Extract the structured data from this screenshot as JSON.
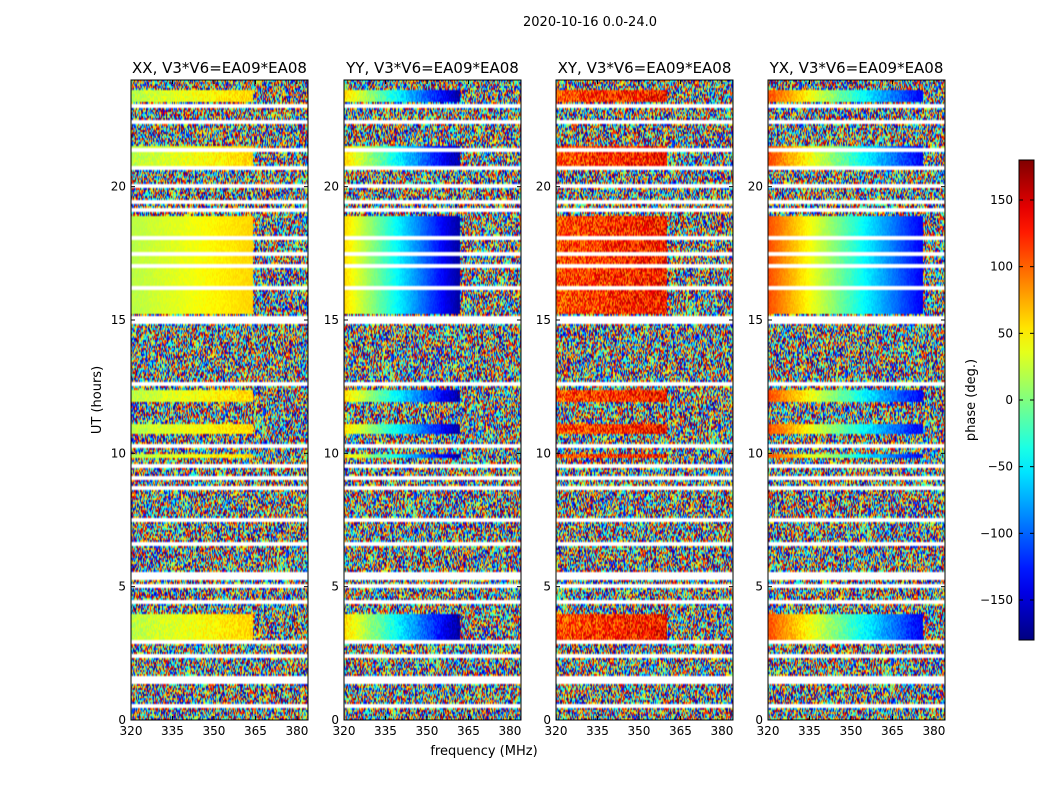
{
  "chart_data": {
    "type": "heatmap",
    "suptitle": "2020-10-16 0.0-24.0",
    "xlabel": "frequency (MHz)",
    "ylabel": "UT (hours)",
    "xlim": [
      320,
      384
    ],
    "ylim": [
      0,
      24
    ],
    "xticks": [
      "320",
      "335",
      "350",
      "365",
      "380"
    ],
    "xtick_values": [
      320,
      335,
      350,
      365,
      380
    ],
    "yticks": [
      "0",
      "5",
      "10",
      "15",
      "20"
    ],
    "ytick_values": [
      0,
      5,
      10,
      15,
      20
    ],
    "panels": [
      {
        "title": "XX, V3*V6=EA09*EA08",
        "pattern": "flat",
        "phase_start": 20,
        "phase_end": 60,
        "wrap_freq": null,
        "rfi_freq": 364
      },
      {
        "title": "YY, V3*V6=EA09*EA08",
        "pattern": "ramp",
        "phase_start": 60,
        "phase_end": -170,
        "wrap_freq": 348,
        "rfi_freq": 362
      },
      {
        "title": "XY, V3*V6=EA09*EA08",
        "pattern": "noisy",
        "phase_start": 110,
        "phase_end": 130,
        "wrap_freq": null,
        "rfi_freq": 360
      },
      {
        "title": "YX, V3*V6=EA09*EA08",
        "pattern": "ramp",
        "phase_start": 110,
        "phase_end": -140,
        "wrap_freq": 331,
        "rfi_freq": 376
      }
    ],
    "good_time_ranges": [
      [
        15.2,
        18.9
      ]
    ],
    "partial_time_ranges": [
      [
        3.0,
        4.0
      ],
      [
        9.8,
        10.0
      ],
      [
        10.7,
        11.1
      ],
      [
        11.9,
        12.4
      ],
      [
        20.6,
        21.5
      ],
      [
        23.2,
        23.6
      ]
    ],
    "flagged_time_rows": [
      0.5,
      1.4,
      1.6,
      2.4,
      2.9,
      4.4,
      5.05,
      5.3,
      5.5,
      6.6,
      7.5,
      8.7,
      9.1,
      9.5,
      10.3,
      12.6,
      14.9,
      15.1,
      16.2,
      17.0,
      17.5,
      18.1,
      19.1,
      19.4,
      20.0,
      20.7,
      21.4,
      22.4,
      23.0
    ],
    "colorbar": {
      "label": "phase (deg.)",
      "range": [
        -180,
        180
      ],
      "ticks": [
        "150",
        "100",
        "50",
        "0",
        "−50",
        "−100",
        "−150"
      ],
      "tick_values": [
        150,
        100,
        50,
        0,
        -50,
        -100,
        -150
      ],
      "colormap": "jet"
    }
  }
}
